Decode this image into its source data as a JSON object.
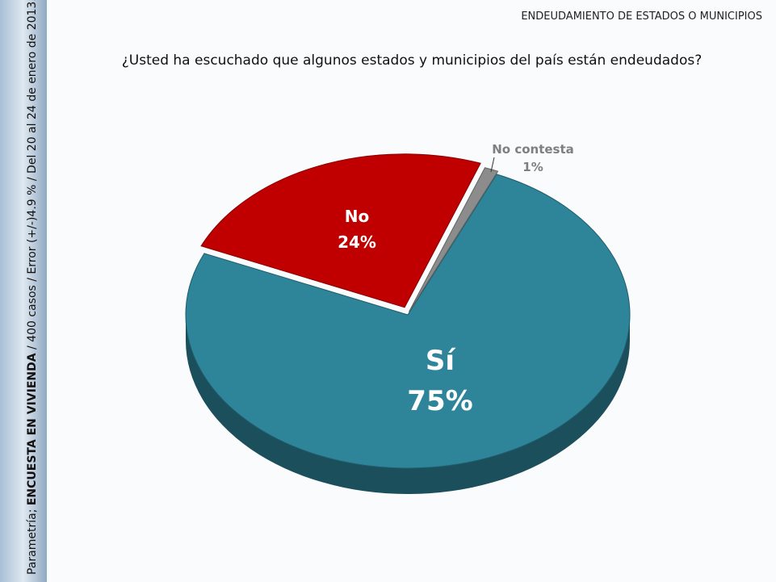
{
  "header": "ENDEUDAMIENTO DE ESTADOS O MUNICIPIOS",
  "source": {
    "prefix": "Parametría; ",
    "bold": "ENCUESTA EN VIVIENDA",
    "rest": " / 400 casos / Error (+/-)4.9 % / Del 20 al 24 de enero de 2013."
  },
  "chart_data": {
    "type": "pie",
    "title": "¿Usted ha escuchado que algunos estados y municipios del país están endeudados?",
    "categories": [
      "Sí",
      "No",
      "No contesta"
    ],
    "values": [
      75,
      24,
      1
    ],
    "value_labels": [
      "75%",
      "24%",
      "1%"
    ],
    "colors": [
      "#2e8499",
      "#c00000",
      "#8c8c8c"
    ]
  }
}
